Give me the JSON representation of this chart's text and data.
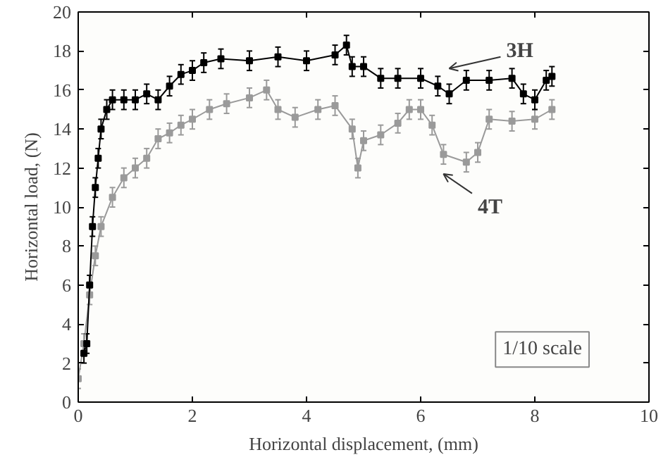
{
  "chart_data": {
    "type": "line",
    "xlabel": "Horizontal displacement, (mm)",
    "ylabel": "Horizontal load, (N)",
    "xlim": [
      0,
      10
    ],
    "ylim": [
      0,
      20
    ],
    "xticks": [
      0,
      2,
      4,
      6,
      8,
      10
    ],
    "yticks": [
      0,
      2,
      4,
      6,
      8,
      10,
      12,
      14,
      16,
      18,
      20
    ],
    "grid": false,
    "marker": "square",
    "line_style": "solid",
    "series": [
      {
        "name": "3H",
        "color": "#000000",
        "x": [
          0.1,
          0.15,
          0.2,
          0.25,
          0.3,
          0.35,
          0.4,
          0.5,
          0.6,
          0.8,
          1.0,
          1.2,
          1.4,
          1.6,
          1.8,
          2.0,
          2.2,
          2.5,
          3.0,
          3.5,
          4.0,
          4.5,
          4.7,
          4.8,
          5.0,
          5.3,
          5.6,
          6.0,
          6.3,
          6.5,
          6.8,
          7.2,
          7.6,
          7.8,
          8.0,
          8.2,
          8.3
        ],
        "values": [
          2.5,
          3,
          6,
          9,
          11,
          12.5,
          14,
          15,
          15.5,
          15.5,
          15.5,
          15.8,
          15.5,
          16.2,
          16.8,
          17,
          17.4,
          17.6,
          17.5,
          17.7,
          17.5,
          17.8,
          18.3,
          17.2,
          17.2,
          16.6,
          16.6,
          16.6,
          16.2,
          15.8,
          16.5,
          16.5,
          16.6,
          15.8,
          15.5,
          16.5,
          16.7
        ],
        "errors": [
          0.5,
          0.5,
          0.5,
          0.5,
          0.5,
          0.5,
          0.5,
          0.5,
          0.5,
          0.5,
          0.5,
          0.5,
          0.5,
          0.5,
          0.5,
          0.5,
          0.5,
          0.5,
          0.5,
          0.5,
          0.5,
          0.5,
          0.5,
          0.5,
          0.5,
          0.5,
          0.5,
          0.5,
          0.5,
          0.5,
          0.5,
          0.5,
          0.5,
          0.5,
          0.5,
          0.5,
          0.5
        ]
      },
      {
        "name": "4T",
        "color": "#9a9a9a",
        "x": [
          0,
          0.1,
          0.2,
          0.3,
          0.4,
          0.6,
          0.8,
          1.0,
          1.2,
          1.4,
          1.6,
          1.8,
          2.0,
          2.3,
          2.6,
          3.0,
          3.3,
          3.5,
          3.8,
          4.2,
          4.5,
          4.8,
          4.9,
          5.0,
          5.3,
          5.6,
          5.8,
          6.0,
          6.2,
          6.4,
          6.8,
          7.0,
          7.2,
          7.6,
          8.0,
          8.3
        ],
        "values": [
          1.2,
          3,
          5.5,
          7.5,
          9,
          10.5,
          11.5,
          12,
          12.5,
          13.5,
          13.8,
          14.2,
          14.5,
          15,
          15.3,
          15.6,
          16,
          15,
          14.6,
          15,
          15.2,
          14,
          12,
          13.4,
          13.7,
          14.3,
          15,
          15,
          14.2,
          12.7,
          12.3,
          12.8,
          14.5,
          14.4,
          14.5,
          15
        ],
        "errors": [
          0.5,
          0.5,
          0.5,
          0.5,
          0.5,
          0.5,
          0.5,
          0.5,
          0.5,
          0.5,
          0.5,
          0.5,
          0.5,
          0.5,
          0.5,
          0.5,
          0.5,
          0.5,
          0.5,
          0.5,
          0.5,
          0.5,
          0.5,
          0.5,
          0.5,
          0.5,
          0.5,
          0.5,
          0.5,
          0.5,
          0.5,
          0.5,
          0.5,
          0.5,
          0.5,
          0.5
        ]
      }
    ],
    "annotations": [
      "1/10 scale"
    ]
  }
}
